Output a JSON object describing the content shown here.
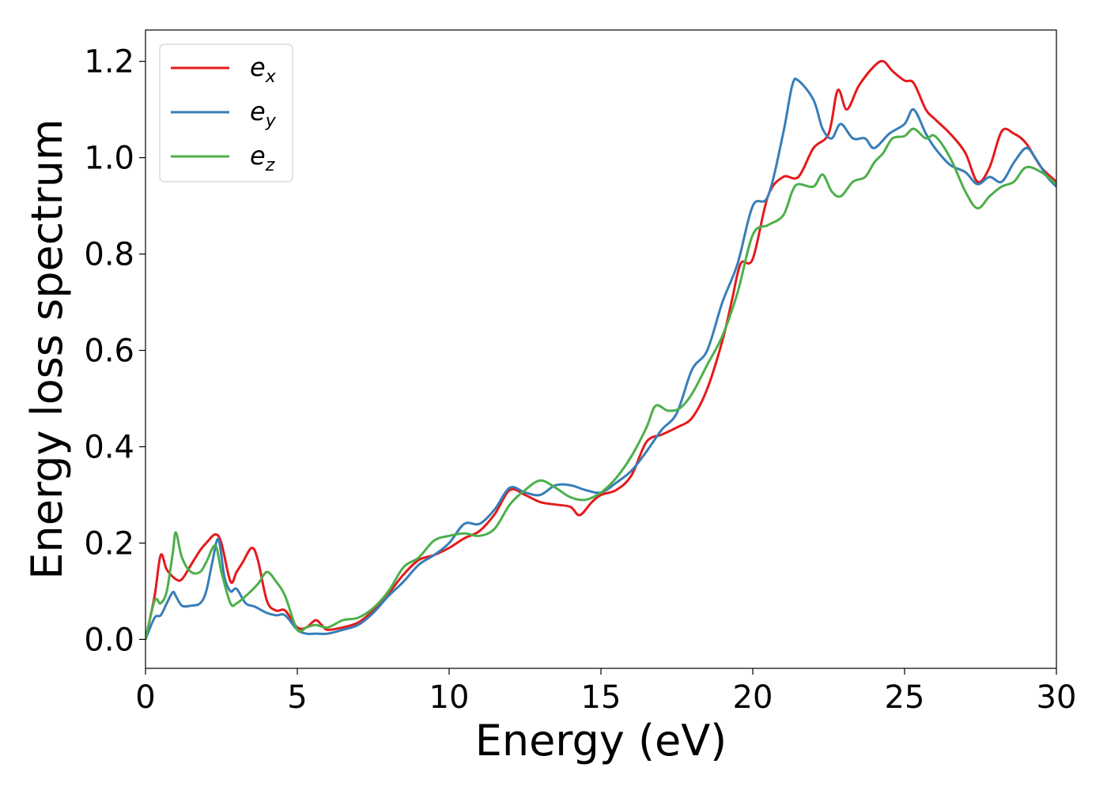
{
  "chart_data": {
    "type": "line",
    "title": "",
    "xlabel": "Energy (eV)",
    "ylabel": "Energy loss spectrum",
    "xlim": [
      0,
      30
    ],
    "ylim": [
      -0.06,
      1.265
    ],
    "xticks": [
      0,
      5,
      10,
      15,
      20,
      25,
      30
    ],
    "xtick_labels": [
      "0",
      "5",
      "10",
      "15",
      "20",
      "25",
      "30"
    ],
    "yticks": [
      0.0,
      0.2,
      0.4,
      0.6,
      0.8,
      1.0,
      1.2
    ],
    "ytick_labels": [
      "0.0",
      "0.2",
      "0.4",
      "0.6",
      "0.8",
      "1.0",
      "1.2"
    ],
    "grid": false,
    "legend_position": "top-left",
    "series": [
      {
        "name": "e",
        "subscript": "x",
        "color": "#e41a1c",
        "x": [
          0,
          0.3,
          0.5,
          0.7,
          1.0,
          1.2,
          1.5,
          1.8,
          2.0,
          2.3,
          2.5,
          2.8,
          3.0,
          3.2,
          3.5,
          3.7,
          4.0,
          4.3,
          4.6,
          5.0,
          5.3,
          5.6,
          5.8,
          6.0,
          6.5,
          7.0,
          7.5,
          8.0,
          8.5,
          9.0,
          9.5,
          10.0,
          10.5,
          11.0,
          11.5,
          12.0,
          12.5,
          13.0,
          13.5,
          14.0,
          14.3,
          14.7,
          15.0,
          15.5,
          16.0,
          16.5,
          17.0,
          17.5,
          18.0,
          18.5,
          19.0,
          19.3,
          19.6,
          20.0,
          20.5,
          21.0,
          21.5,
          22.0,
          22.5,
          22.8,
          23.1,
          23.5,
          24.0,
          24.3,
          24.6,
          25.0,
          25.3,
          25.7,
          26.0,
          26.5,
          27.0,
          27.4,
          27.8,
          28.2,
          28.6,
          29.0,
          29.5,
          30.0
        ],
        "y": [
          0.0,
          0.09,
          0.175,
          0.145,
          0.125,
          0.125,
          0.155,
          0.185,
          0.2,
          0.218,
          0.2,
          0.12,
          0.14,
          0.16,
          0.19,
          0.165,
          0.08,
          0.06,
          0.06,
          0.025,
          0.025,
          0.04,
          0.03,
          0.02,
          0.025,
          0.035,
          0.06,
          0.095,
          0.135,
          0.165,
          0.175,
          0.19,
          0.21,
          0.225,
          0.26,
          0.31,
          0.3,
          0.285,
          0.28,
          0.275,
          0.258,
          0.285,
          0.3,
          0.31,
          0.34,
          0.41,
          0.425,
          0.44,
          0.46,
          0.52,
          0.62,
          0.7,
          0.78,
          0.79,
          0.92,
          0.96,
          0.96,
          1.02,
          1.05,
          1.14,
          1.1,
          1.15,
          1.19,
          1.2,
          1.18,
          1.16,
          1.155,
          1.1,
          1.08,
          1.05,
          1.01,
          0.95,
          0.98,
          1.055,
          1.05,
          1.03,
          0.98,
          0.95
        ]
      },
      {
        "name": "e",
        "subscript": "y",
        "color": "#377eb8",
        "x": [
          0,
          0.3,
          0.5,
          0.7,
          0.9,
          1.0,
          1.2,
          1.5,
          1.8,
          2.0,
          2.2,
          2.4,
          2.6,
          2.8,
          3.0,
          3.3,
          3.6,
          4.0,
          4.3,
          4.6,
          5.0,
          5.3,
          5.6,
          6.0,
          6.5,
          7.0,
          7.5,
          8.0,
          8.5,
          9.0,
          9.5,
          10.0,
          10.5,
          11.0,
          11.5,
          12.0,
          12.5,
          13.0,
          13.5,
          14.0,
          14.5,
          15.0,
          15.5,
          16.0,
          16.5,
          17.0,
          17.5,
          18.0,
          18.5,
          19.0,
          19.5,
          20.0,
          20.5,
          21.0,
          21.3,
          21.5,
          22.0,
          22.3,
          22.6,
          22.9,
          23.3,
          23.7,
          24.0,
          24.5,
          25.0,
          25.3,
          25.7,
          26.0,
          26.5,
          27.0,
          27.4,
          27.8,
          28.2,
          28.6,
          29.0,
          29.3,
          29.7,
          30.0
        ],
        "y": [
          0.0,
          0.045,
          0.05,
          0.075,
          0.098,
          0.09,
          0.07,
          0.07,
          0.075,
          0.1,
          0.16,
          0.208,
          0.13,
          0.1,
          0.105,
          0.075,
          0.068,
          0.055,
          0.05,
          0.05,
          0.02,
          0.012,
          0.012,
          0.012,
          0.02,
          0.03,
          0.055,
          0.09,
          0.12,
          0.155,
          0.175,
          0.2,
          0.24,
          0.24,
          0.27,
          0.315,
          0.305,
          0.3,
          0.32,
          0.32,
          0.31,
          0.305,
          0.325,
          0.35,
          0.39,
          0.435,
          0.47,
          0.56,
          0.6,
          0.7,
          0.78,
          0.9,
          0.92,
          1.05,
          1.15,
          1.16,
          1.12,
          1.06,
          1.04,
          1.07,
          1.04,
          1.04,
          1.02,
          1.05,
          1.07,
          1.1,
          1.05,
          1.02,
          0.985,
          0.97,
          0.945,
          0.96,
          0.95,
          0.99,
          1.02,
          1.0,
          0.96,
          0.94
        ]
      },
      {
        "name": "e",
        "subscript": "z",
        "color": "#4daf4a",
        "x": [
          0,
          0.3,
          0.5,
          0.7,
          0.9,
          1.0,
          1.2,
          1.5,
          1.8,
          2.0,
          2.3,
          2.5,
          2.8,
          3.0,
          3.3,
          3.7,
          4.0,
          4.3,
          4.6,
          5.0,
          5.3,
          5.6,
          6.0,
          6.5,
          7.0,
          7.5,
          8.0,
          8.5,
          9.0,
          9.5,
          10.0,
          10.5,
          11.0,
          11.5,
          12.0,
          12.5,
          13.0,
          13.5,
          14.0,
          14.5,
          15.0,
          15.5,
          16.0,
          16.5,
          16.8,
          17.2,
          17.6,
          18.0,
          18.5,
          19.0,
          19.5,
          20.0,
          20.5,
          21.0,
          21.3,
          21.5,
          22.0,
          22.3,
          22.6,
          22.9,
          23.3,
          23.7,
          24.0,
          24.3,
          24.6,
          25.0,
          25.3,
          25.7,
          26.0,
          26.5,
          27.0,
          27.4,
          27.8,
          28.2,
          28.6,
          29.0,
          29.5,
          30.0
        ],
        "y": [
          0.0,
          0.08,
          0.075,
          0.1,
          0.18,
          0.222,
          0.17,
          0.14,
          0.14,
          0.16,
          0.195,
          0.14,
          0.075,
          0.075,
          0.09,
          0.115,
          0.14,
          0.12,
          0.09,
          0.02,
          0.025,
          0.03,
          0.025,
          0.04,
          0.045,
          0.065,
          0.1,
          0.15,
          0.17,
          0.205,
          0.215,
          0.22,
          0.215,
          0.23,
          0.28,
          0.31,
          0.33,
          0.315,
          0.295,
          0.29,
          0.305,
          0.335,
          0.38,
          0.44,
          0.485,
          0.475,
          0.48,
          0.51,
          0.57,
          0.63,
          0.72,
          0.84,
          0.86,
          0.88,
          0.93,
          0.945,
          0.94,
          0.965,
          0.93,
          0.92,
          0.95,
          0.96,
          0.99,
          1.01,
          1.04,
          1.045,
          1.06,
          1.04,
          1.045,
          1.0,
          0.93,
          0.895,
          0.92,
          0.94,
          0.95,
          0.98,
          0.97,
          0.945
        ]
      }
    ]
  }
}
